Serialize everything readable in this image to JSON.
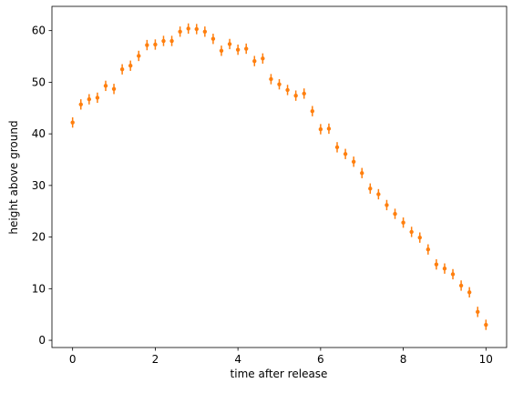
{
  "chart_data": {
    "type": "errorbar",
    "x_label": "time after release",
    "y_label": "height above ground",
    "xlim": [
      -0.5,
      10.5
    ],
    "ylim": [
      -1.4,
      64.7
    ],
    "xticks": [
      0,
      2,
      4,
      6,
      8,
      10
    ],
    "yticks": [
      0,
      10,
      20,
      30,
      40,
      50,
      60
    ],
    "series": [
      {
        "color": "#ff7f0e",
        "error": 1,
        "x": [
          0,
          0.2,
          0.4,
          0.6,
          0.8,
          1,
          1.2,
          1.4,
          1.6,
          1.8,
          2,
          2.2,
          2.4,
          2.6,
          2.8,
          3,
          3.2,
          3.4,
          3.6,
          3.8,
          4,
          4.2,
          4.4,
          4.6,
          4.8,
          5,
          5.2,
          5.4,
          5.6,
          5.8,
          6,
          6.2,
          6.4,
          6.6,
          6.8,
          7,
          7.2,
          7.4,
          7.6,
          7.8,
          8,
          8.2,
          8.4,
          8.6,
          8.8,
          9,
          9.2,
          9.4,
          9.6,
          9.8,
          10
        ],
        "values": [
          42.2,
          45.7,
          46.7,
          47.0,
          49.3,
          48.7,
          52.5,
          53.2,
          55.1,
          57.2,
          57.3,
          58.0,
          58.0,
          59.8,
          60.4,
          60.3,
          59.8,
          58.4,
          56.1,
          57.4,
          56.3,
          56.5,
          54.1,
          54.6,
          50.6,
          49.6,
          48.5,
          47.4,
          47.8,
          44.4,
          40.9,
          41.0,
          37.4,
          36.1,
          34.6,
          32.4,
          29.4,
          28.3,
          26.2,
          24.5,
          22.8,
          21.0,
          19.9,
          17.6,
          14.7,
          13.9,
          12.8,
          10.6,
          9.3,
          5.5,
          3.0
        ]
      }
    ]
  }
}
